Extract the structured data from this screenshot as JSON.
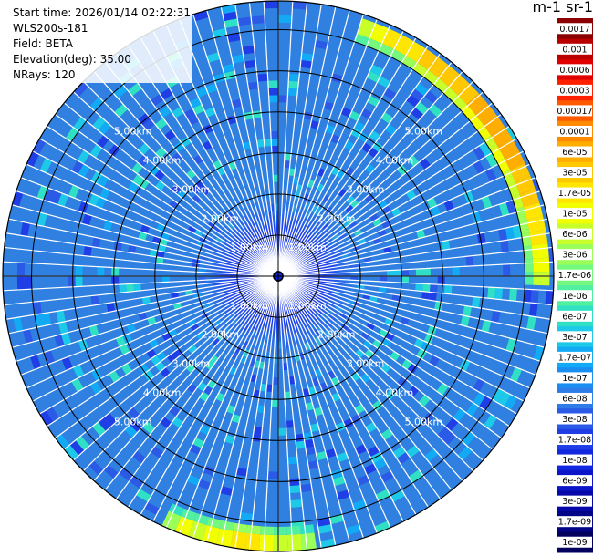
{
  "info": {
    "start_time": "Start time: 2026/01/14 02:22:31",
    "instrument": "WLS200s-181",
    "field": "Field: BETA",
    "elevation": "Elevation(deg): 35.00",
    "nrays": "NRays: 120"
  },
  "colorbar": {
    "unit_label": "m-1 sr-1",
    "labels": [
      "0.0017",
      "0.001",
      "0.0006",
      "0.0003",
      "0.00017",
      "0.0001",
      "6e-05",
      "3e-05",
      "1.7e-05",
      "1e-05",
      "6e-06",
      "3e-06",
      "1.7e-06",
      "1e-06",
      "6e-07",
      "3e-07",
      "1.7e-07",
      "1e-07",
      "6e-08",
      "3e-08",
      "1.7e-08",
      "1e-08",
      "6e-09",
      "3e-09",
      "1.7e-09",
      "1e-09"
    ],
    "colors": [
      "#8b0000",
      "#b80000",
      "#e00000",
      "#ff2000",
      "#ff5a00",
      "#ff8a00",
      "#ffad00",
      "#ffc800",
      "#ffe600",
      "#f2ff00",
      "#c8ff2a",
      "#9bff5a",
      "#74f87d",
      "#50f0a0",
      "#30e0c4",
      "#1ec8e8",
      "#12aaf5",
      "#1a8ef0",
      "#2f7ce8",
      "#2a5ae6",
      "#1f3ee6",
      "#1228e0",
      "#0a14c8",
      "#0608a8",
      "#040488",
      "#02025e"
    ]
  },
  "chart_data": {
    "type": "heatmap",
    "projection": "polar PPI",
    "field": "BETA",
    "elevation_deg": 35.0,
    "n_rays": 120,
    "range_ring_labels": [
      "1.00km",
      "2.00km",
      "3.00km",
      "4.00km",
      "5.00km"
    ],
    "range_rings_km": [
      1,
      2,
      3,
      4,
      5
    ],
    "max_range_km": 6.7,
    "scale": "log",
    "value_range": [
      1e-09,
      0.0017
    ],
    "typical_value": 3e-08,
    "features": [
      {
        "description": "arc",
        "azimuth_deg_start": 18,
        "azimuth_deg_end": 92,
        "range_km": [
          6.2,
          6.6
        ],
        "value": 3e-05
      },
      {
        "description": "arc",
        "azimuth_deg_start": 172,
        "azimuth_deg_end": 205,
        "range_km": [
          6.3,
          6.7
        ],
        "value": 1e-05
      }
    ]
  }
}
